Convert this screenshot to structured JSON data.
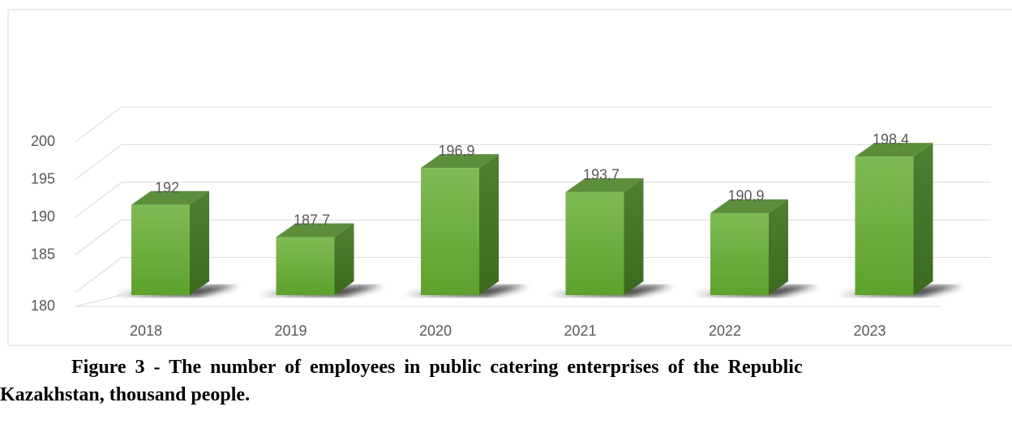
{
  "chart_data": {
    "type": "bar3d",
    "categories": [
      "2018",
      "2019",
      "2020",
      "2021",
      "2022",
      "2023"
    ],
    "values": [
      192,
      187.7,
      196.9,
      193.7,
      190.9,
      198.4
    ],
    "value_labels": [
      "192",
      "187,7",
      "196,9",
      "193,7",
      "190,9",
      "198,4"
    ],
    "color": "#6aaa3a",
    "ylim": [
      180,
      205
    ],
    "yticks": [
      180,
      185,
      190,
      195,
      200
    ],
    "grid": true
  },
  "caption": {
    "line1": "Figure 3 - The number of employees in public catering enterprises of the Republic",
    "line2": "Kazakhstan, thousand people."
  }
}
